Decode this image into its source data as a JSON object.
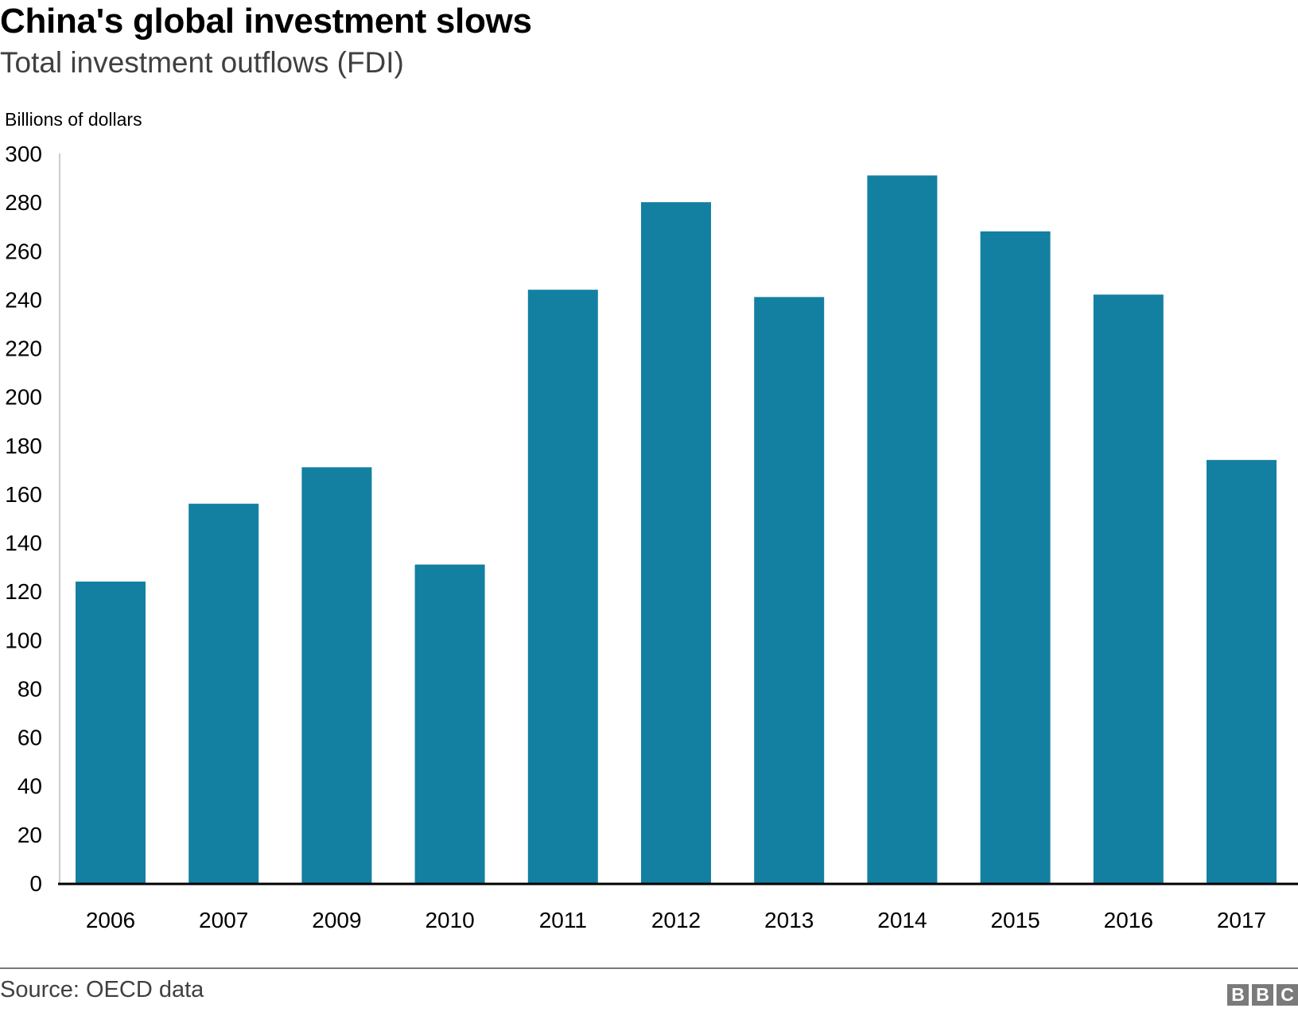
{
  "chart_data": {
    "type": "bar",
    "title": "China's global investment slows",
    "subtitle": "Total investment outflows (FDI)",
    "xlabel": "",
    "ylabel": "Billions of dollars",
    "categories": [
      "2006",
      "2007",
      "2009",
      "2010",
      "2011",
      "2012",
      "2013",
      "2014",
      "2015",
      "2016",
      "2017"
    ],
    "values": [
      124,
      156,
      171,
      131,
      244,
      280,
      241,
      291,
      268,
      242,
      174
    ],
    "ylim": [
      0,
      300
    ],
    "yticks": [
      "0",
      "20",
      "40",
      "60",
      "80",
      "100",
      "120",
      "140",
      "160",
      "180",
      "200",
      "220",
      "240",
      "260",
      "280",
      "300"
    ],
    "grid": false,
    "legend": "none",
    "bar_color": "#1380A1"
  },
  "footer": {
    "source": "Source: OECD data",
    "logo_letters": [
      "B",
      "B",
      "C"
    ]
  }
}
